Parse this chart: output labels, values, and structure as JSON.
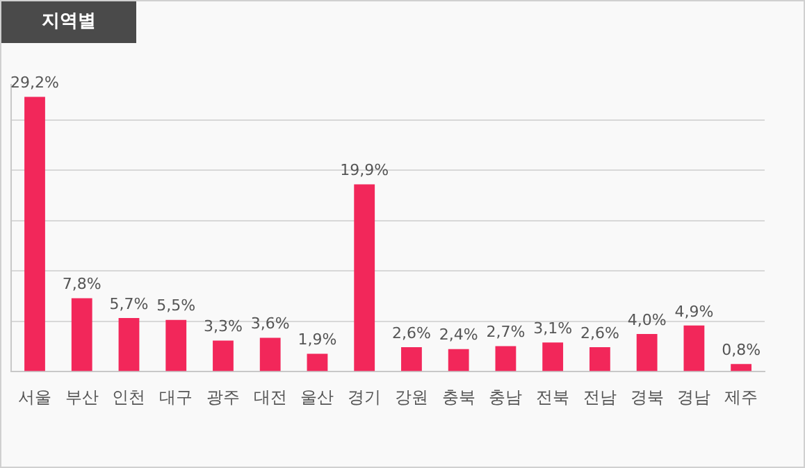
{
  "chart_data": {
    "type": "bar",
    "title": "지역별",
    "categories": [
      "서울",
      "부산",
      "인천",
      "대구",
      "광주",
      "대전",
      "울산",
      "경기",
      "강원",
      "충북",
      "충남",
      "전북",
      "전남",
      "경북",
      "경남",
      "제주"
    ],
    "values": [
      29.2,
      7.8,
      5.7,
      5.5,
      3.3,
      3.6,
      1.9,
      19.9,
      2.6,
      2.4,
      2.7,
      3.1,
      2.6,
      4.0,
      4.9,
      0.8
    ],
    "value_labels": [
      "29,2%",
      "7,8%",
      "5,7%",
      "5,5%",
      "3,3%",
      "3,6%",
      "1,9%",
      "19,9%",
      "2,6%",
      "2,4%",
      "2,7%",
      "3,1%",
      "2,6%",
      "4,0%",
      "4,9%",
      "0,8%"
    ],
    "color": "#f2275a",
    "ylim": [
      0,
      30.5
    ],
    "yticks": [
      0,
      {
        "value": 5.35,
        "label": null
      },
      {
        "value": 10.7,
        "label": null
      },
      {
        "value": 16.05,
        "label": null
      },
      {
        "value": 21.4,
        "label": null
      },
      {
        "value": 26.75,
        "label": null
      }
    ],
    "grid": "y",
    "tick_labels": "x"
  }
}
